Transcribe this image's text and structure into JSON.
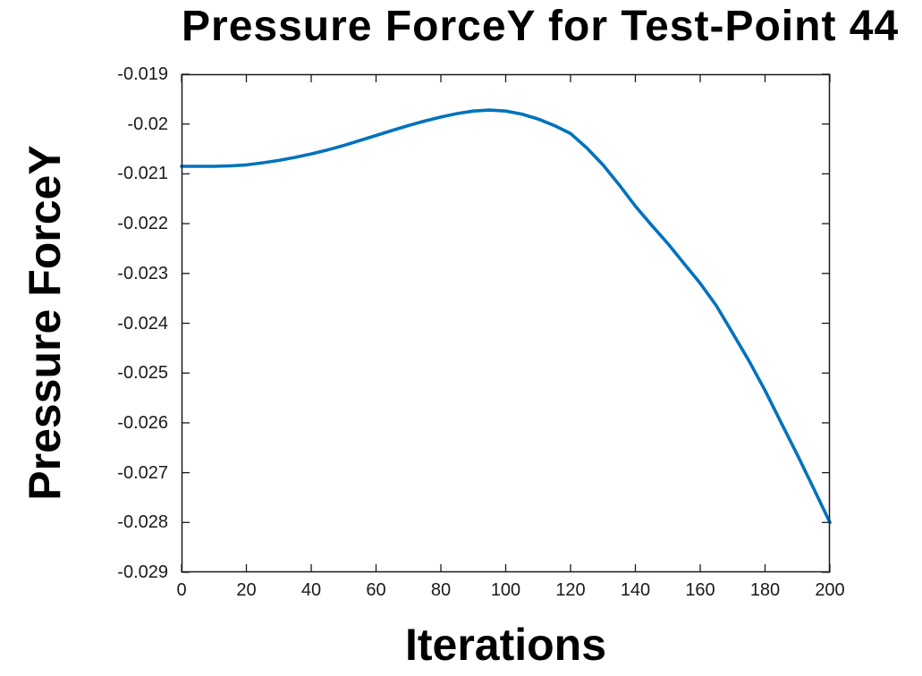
{
  "figure": {
    "title": "Pressure ForceY for Test-Point 44",
    "xlabel": "Iterations",
    "ylabel": "Pressure ForceY"
  },
  "chart_data": {
    "type": "line",
    "title": "Pressure ForceY for Test-Point 44",
    "xlabel": "Iterations",
    "ylabel": "Pressure ForceY",
    "xlim": [
      0,
      200
    ],
    "ylim": [
      -0.029,
      -0.019
    ],
    "x_ticks": [
      0,
      20,
      40,
      60,
      80,
      100,
      120,
      140,
      160,
      180,
      200
    ],
    "x_tick_labels": [
      "0",
      "20",
      "40",
      "60",
      "80",
      "100",
      "120",
      "140",
      "160",
      "180",
      "200"
    ],
    "y_ticks": [
      -0.029,
      -0.028,
      -0.027,
      -0.026,
      -0.025,
      -0.024,
      -0.023,
      -0.022,
      -0.021,
      -0.02,
      -0.019
    ],
    "y_tick_labels": [
      "-0.029",
      "-0.028",
      "-0.027",
      "-0.026",
      "-0.025",
      "-0.024",
      "-0.023",
      "-0.022",
      "-0.021",
      "-0.02",
      "-0.019"
    ],
    "grid": false,
    "legend": null,
    "box": true,
    "colors": {
      "line": "#0072BD",
      "axis": "#1a1a1a",
      "text": "#000000"
    },
    "series": [
      {
        "name": "Pressure ForceY",
        "x": [
          0,
          5,
          10,
          15,
          20,
          25,
          30,
          35,
          40,
          45,
          50,
          55,
          60,
          65,
          70,
          75,
          80,
          85,
          90,
          95,
          100,
          105,
          110,
          115,
          120,
          125,
          130,
          135,
          140,
          145,
          150,
          155,
          160,
          165,
          170,
          175,
          180,
          185,
          190,
          195,
          200
        ],
        "y": [
          -0.02085,
          -0.02085,
          -0.02085,
          -0.02084,
          -0.02082,
          -0.02078,
          -0.02073,
          -0.02067,
          -0.0206,
          -0.02052,
          -0.02043,
          -0.02033,
          -0.02023,
          -0.02013,
          -0.02003,
          -0.01994,
          -0.01986,
          -0.01979,
          -0.01974,
          -0.01972,
          -0.01974,
          -0.0198,
          -0.0199,
          -0.02003,
          -0.02019,
          -0.02048,
          -0.02082,
          -0.02122,
          -0.02165,
          -0.02203,
          -0.0224,
          -0.0228,
          -0.0232,
          -0.02365,
          -0.0242,
          -0.02475,
          -0.02535,
          -0.026,
          -0.02665,
          -0.02732,
          -0.028
        ]
      }
    ]
  }
}
